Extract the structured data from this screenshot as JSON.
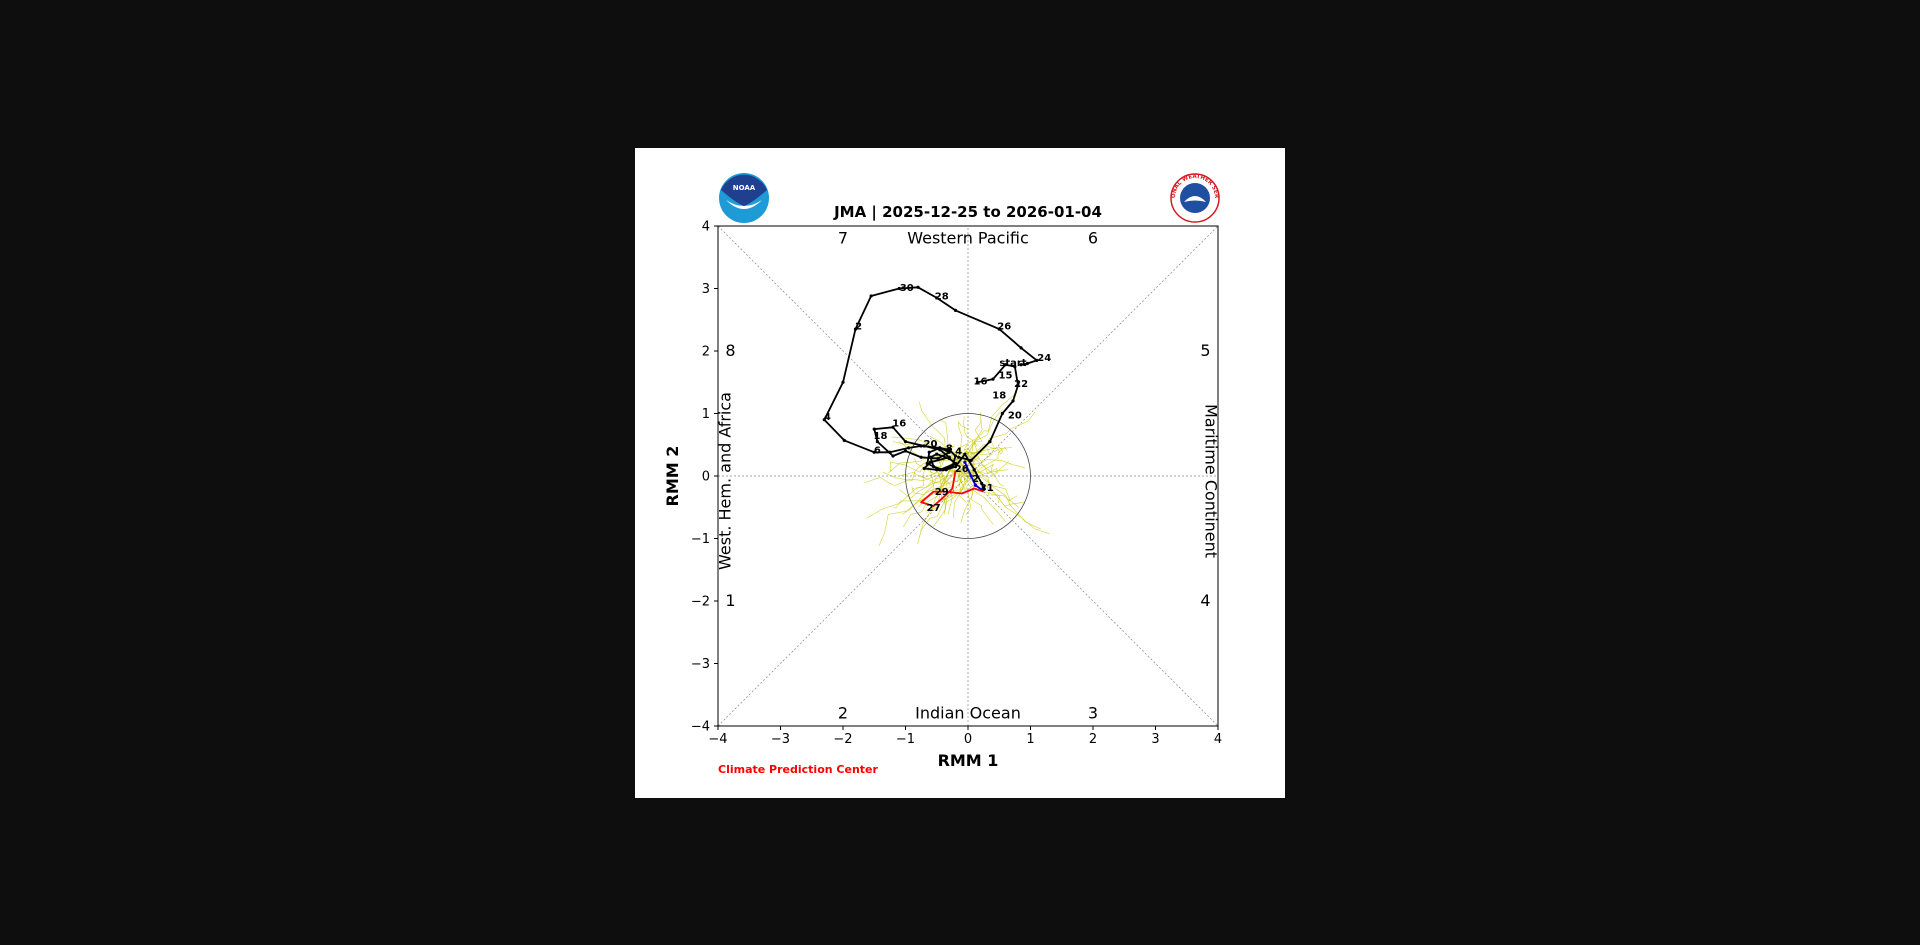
{
  "figure": {
    "title": "JMA | 2025-12-25 to 2026-01-04",
    "credit": "Climate Prediction Center",
    "logos": {
      "left": "NOAA",
      "right": "NATIONAL WEATHER SERVICE"
    },
    "colors": {
      "observed": "#000000",
      "forecast_mean": "#ff0000",
      "recent": "#0000cc",
      "ensemble": "#c8c800",
      "credit": "#ff0000"
    }
  },
  "chart_data": {
    "type": "line",
    "title": "JMA | 2025-12-25 to 2026-01-04",
    "xlabel": "RMM 1",
    "ylabel": "RMM 2",
    "xlim": [
      -4,
      4
    ],
    "ylim": [
      -4,
      4
    ],
    "xticks": [
      -4,
      -3,
      -2,
      -1,
      0,
      1,
      2,
      3,
      4
    ],
    "yticks": [
      -4,
      -3,
      -2,
      -1,
      0,
      1,
      2,
      3,
      4
    ],
    "xtick_labels": [
      "−4",
      "−3",
      "−2",
      "−1",
      "0",
      "1",
      "2",
      "3",
      "4"
    ],
    "ytick_labels": [
      "−4",
      "−3",
      "−2",
      "−1",
      "0",
      "1",
      "2",
      "3",
      "4"
    ],
    "unit_circle_radius": 1,
    "regions": [
      {
        "label": "Western Pacific",
        "x": 0,
        "y": 3.8
      },
      {
        "label": "Indian Ocean",
        "x": 0,
        "y": -3.8
      },
      {
        "label": "West. Hem. and Africa",
        "x": -3.8,
        "y": 0,
        "rotate": -90
      },
      {
        "label": "Maritime Continent",
        "x": 3.8,
        "y": 0,
        "rotate": 90
      }
    ],
    "phases": [
      {
        "label": "7",
        "x": -2.0,
        "y": 3.8
      },
      {
        "label": "6",
        "x": 2.0,
        "y": 3.8
      },
      {
        "label": "8",
        "x": -3.8,
        "y": 2.0
      },
      {
        "label": "5",
        "x": 3.8,
        "y": 2.0
      },
      {
        "label": "1",
        "x": -3.8,
        "y": -2.0
      },
      {
        "label": "4",
        "x": 3.8,
        "y": -2.0
      },
      {
        "label": "2",
        "x": -2.0,
        "y": -3.8
      },
      {
        "label": "3",
        "x": 2.0,
        "y": -3.8
      }
    ],
    "series": [
      {
        "key": "observed",
        "points": [
          [
            0.85,
            1.78
          ],
          [
            0.95,
            1.8
          ],
          [
            1.1,
            1.85
          ],
          [
            0.85,
            2.05
          ],
          [
            0.5,
            2.35
          ],
          [
            -0.2,
            2.65
          ],
          [
            -0.5,
            2.85
          ],
          [
            -0.8,
            3.02
          ],
          [
            -1.1,
            3.0
          ],
          [
            -1.55,
            2.88
          ],
          [
            -1.8,
            2.35
          ],
          [
            -2.0,
            1.5
          ],
          [
            -2.3,
            0.9
          ],
          [
            -1.98,
            0.57
          ],
          [
            -1.5,
            0.38
          ],
          [
            -1.25,
            0.38
          ],
          [
            -0.95,
            0.45
          ],
          [
            -0.75,
            0.48
          ],
          [
            -0.45,
            0.45
          ],
          [
            -0.3,
            0.42
          ],
          [
            -0.2,
            0.32
          ],
          [
            -0.25,
            0.15
          ],
          [
            -0.4,
            0.1
          ],
          [
            -0.55,
            0.15
          ],
          [
            -0.6,
            0.3
          ],
          [
            -0.5,
            0.35
          ],
          [
            -0.3,
            0.28
          ],
          [
            -0.2,
            0.2
          ],
          [
            -0.45,
            0.1
          ],
          [
            -0.65,
            0.2
          ],
          [
            -0.62,
            0.38
          ],
          [
            -0.45,
            0.45
          ],
          [
            -0.3,
            0.38
          ],
          [
            -0.48,
            0.28
          ],
          [
            -0.75,
            0.3
          ],
          [
            -1.0,
            0.4
          ],
          [
            -1.2,
            0.32
          ],
          [
            -1.45,
            0.55
          ],
          [
            -1.5,
            0.75
          ],
          [
            -1.2,
            0.78
          ],
          [
            -1.0,
            0.55
          ],
          [
            -0.7,
            0.48
          ],
          [
            -0.45,
            0.42
          ],
          [
            -0.3,
            0.3
          ],
          [
            -0.6,
            0.22
          ],
          [
            -0.7,
            0.12
          ],
          [
            -0.5,
            0.1
          ],
          [
            -0.35,
            0.1
          ],
          [
            -0.2,
            0.15
          ],
          [
            -0.05,
            0.35
          ],
          [
            0.1,
            0.1
          ],
          [
            0.22,
            -0.12
          ],
          [
            0.25,
            -0.2
          ]
        ],
        "labels": [
          {
            "text": "24",
            "x": 1.22,
            "y": 1.9
          },
          {
            "text": "26",
            "x": 0.58,
            "y": 2.4
          },
          {
            "text": "28",
            "x": -0.42,
            "y": 2.88
          },
          {
            "text": "30",
            "x": -0.98,
            "y": 3.02
          },
          {
            "text": "2",
            "x": -1.75,
            "y": 2.4
          },
          {
            "text": "4",
            "x": -2.25,
            "y": 0.95
          },
          {
            "text": "6",
            "x": -1.45,
            "y": 0.42
          },
          {
            "text": "16",
            "x": -1.1,
            "y": 0.85
          },
          {
            "text": "18",
            "x": -1.4,
            "y": 0.65
          },
          {
            "text": "20",
            "x": -0.6,
            "y": 0.52
          },
          {
            "text": "8",
            "x": -0.3,
            "y": 0.45
          },
          {
            "text": "4",
            "x": -0.15,
            "y": 0.4
          }
        ]
      },
      {
        "key": "recent",
        "points": [
          [
            -0.15,
            0.3
          ],
          [
            0.05,
            0.25
          ],
          [
            0.35,
            0.55
          ],
          [
            0.55,
            1.0
          ],
          [
            0.72,
            1.2
          ],
          [
            0.8,
            1.45
          ],
          [
            0.75,
            1.75
          ],
          [
            0.6,
            1.78
          ],
          [
            0.4,
            1.55
          ],
          [
            0.15,
            1.5
          ]
        ],
        "labels": [
          {
            "text": "start",
            "x": 0.72,
            "y": 1.82
          },
          {
            "text": "15",
            "x": 0.6,
            "y": 1.62
          },
          {
            "text": "16",
            "x": 0.2,
            "y": 1.52
          },
          {
            "text": "22",
            "x": 0.85,
            "y": 1.48
          },
          {
            "text": "18",
            "x": 0.5,
            "y": 1.3
          },
          {
            "text": "20",
            "x": 0.75,
            "y": 0.98
          }
        ]
      },
      {
        "key": "forecast_blue",
        "points": [
          [
            -0.05,
            0.22
          ],
          [
            0.05,
            0.0
          ],
          [
            0.12,
            -0.15
          ],
          [
            0.22,
            -0.22
          ]
        ],
        "labels": [
          {
            "text": "2",
            "x": 0.12,
            "y": -0.04
          },
          {
            "text": "31",
            "x": 0.3,
            "y": -0.18
          },
          {
            "text": "26",
            "x": -0.1,
            "y": 0.12
          }
        ]
      },
      {
        "key": "forecast_mean",
        "points": [
          [
            -0.2,
            0.08
          ],
          [
            -0.25,
            -0.2
          ],
          [
            -0.35,
            -0.3
          ],
          [
            -0.55,
            -0.48
          ],
          [
            -0.75,
            -0.42
          ],
          [
            -0.55,
            -0.25
          ],
          [
            -0.35,
            -0.25
          ],
          [
            -0.1,
            -0.28
          ],
          [
            0.1,
            -0.2
          ],
          [
            0.25,
            -0.25
          ]
        ],
        "labels": [
          {
            "text": "29",
            "x": -0.42,
            "y": -0.25
          },
          {
            "text": "27",
            "x": -0.55,
            "y": -0.5
          }
        ]
      }
    ]
  }
}
